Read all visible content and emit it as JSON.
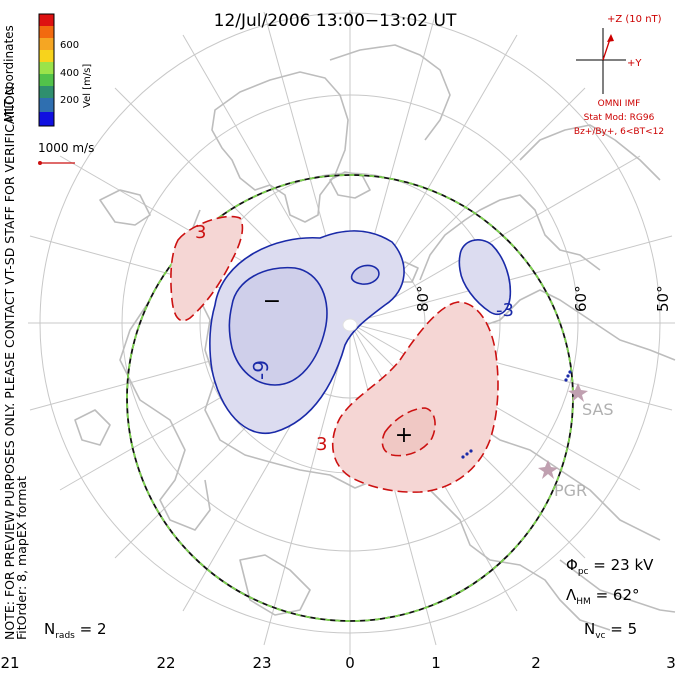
{
  "title": "12/Jul/2006 13:00−13:02 UT",
  "side_note": {
    "line1": "NOTE: FOR PREVIEW PURPOSES ONLY. PLEASE CONTACT VT-SD STAFF FOR VERIFICATION.",
    "line2": "FitOrder: 8, mapEX format"
  },
  "coordinates_label": "MLT coordinates",
  "colorbar": {
    "axis_label": "Vel [m/s]",
    "ticks": [
      "600",
      "400",
      "200"
    ],
    "colors": [
      "#dd1111",
      "#f26a0f",
      "#f5a623",
      "#f7d31c",
      "#9be34a",
      "#52c24a",
      "#2f8f6e",
      "#2f6fb0",
      "#1010e0"
    ]
  },
  "velocity_scale": "1000 m/s",
  "imf": {
    "z_label": "+Z (10 nT)",
    "y_label": "+Y",
    "model_lines": [
      "OMNI IMF",
      "Stat Mod: RG96",
      "Bz+/By+, 6<BT<12"
    ],
    "color": "#cc0000"
  },
  "latitude_labels": [
    "80°",
    "60°",
    "50°"
  ],
  "mlt_labels": [
    "21",
    "22",
    "23",
    "0",
    "1",
    "2",
    "3"
  ],
  "stations": [
    "SAS",
    "PGR"
  ],
  "contour_labels": {
    "neg_a": "-3",
    "neg_b": "-9",
    "pos_a": "3",
    "pos_b": "3",
    "neg_marker": "−",
    "pos_marker": "+"
  },
  "stats": {
    "phi_symbol": "Φ",
    "phi_sub": "pc",
    "phi_value": " = 23 kV",
    "lambda_symbol": "Λ",
    "lambda_sub": "HM",
    "lambda_value": " = 62°",
    "nvc_symbol": "N",
    "nvc_sub": "vc",
    "nvc_value": " = 5",
    "nrads_symbol": "N",
    "nrads_sub": "rads",
    "nrads_value": " = 2"
  },
  "colors": {
    "grid": "#c8c8c8",
    "coast": "#bdbdbd",
    "negative_line": "#1a2aa8",
    "negative_fill": "#dcdcf0",
    "positive_line": "#cc1111",
    "positive_fill": "#f5d6d4",
    "boundary_green": "#7ed34f",
    "station": "#c0a0b0"
  }
}
